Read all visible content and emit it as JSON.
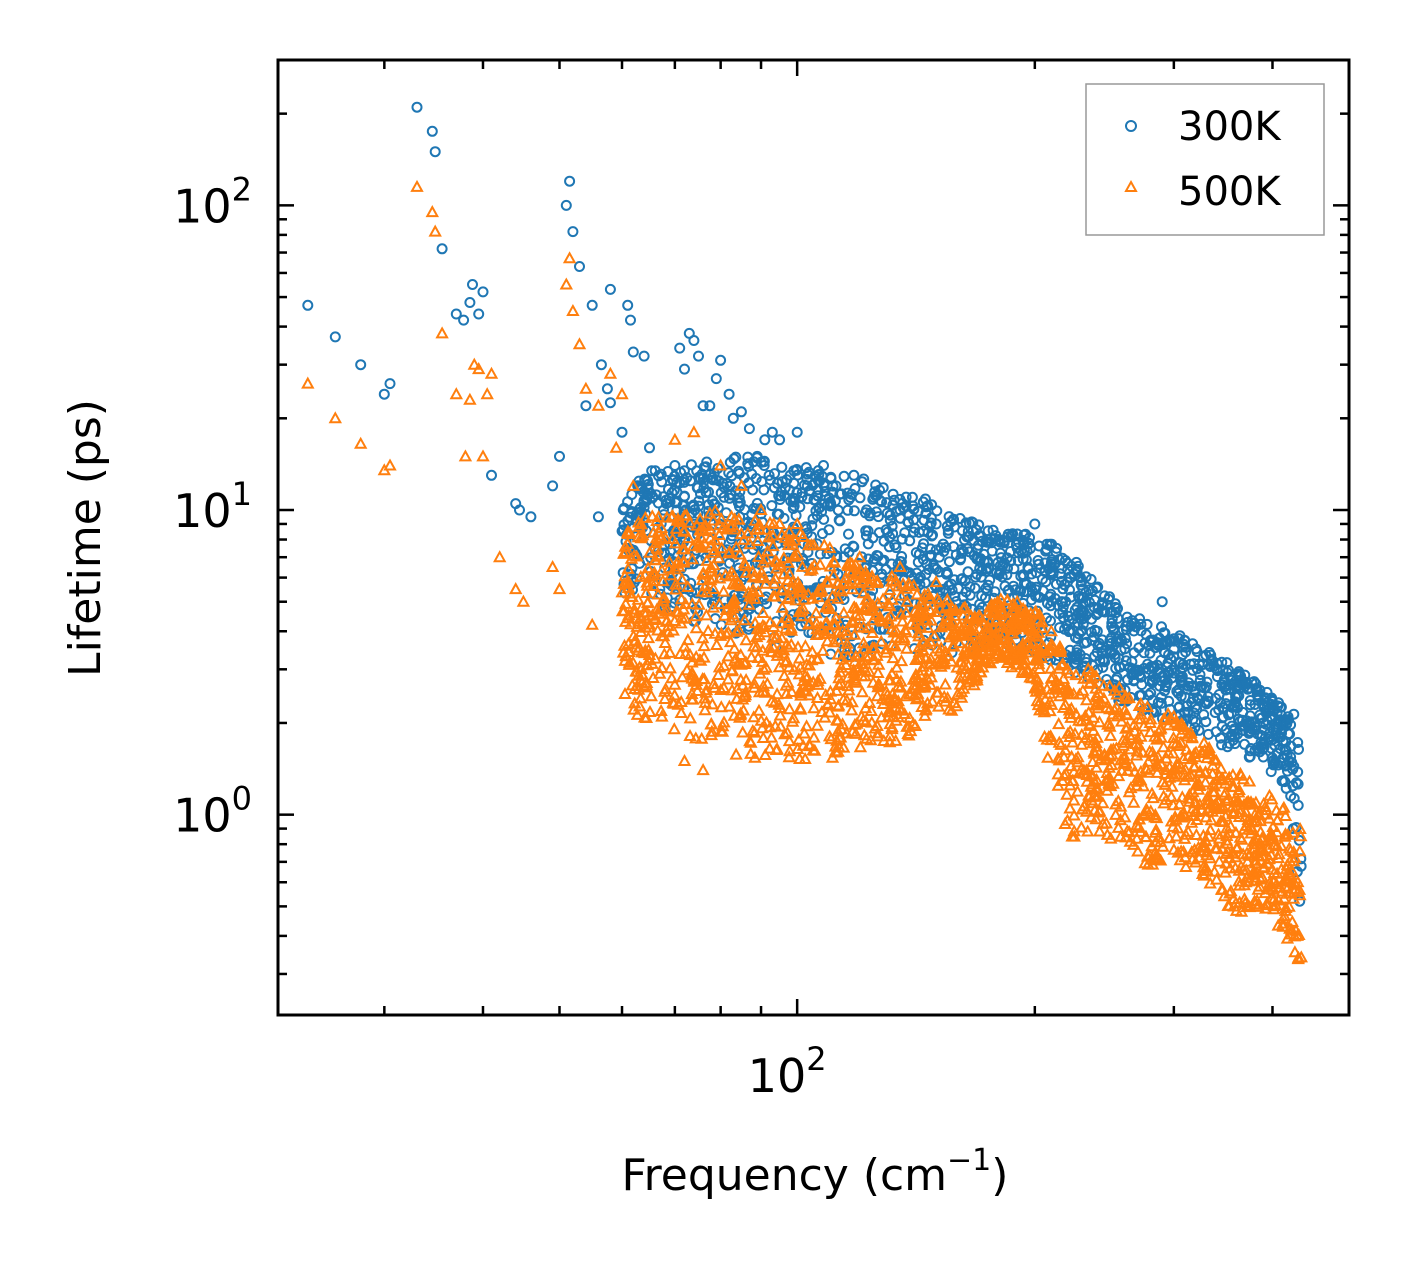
{
  "chart_data": {
    "type": "scatter",
    "title": "",
    "xlabel": "Frequency (cm",
    "xlabel_sup": "−1",
    "xlabel_close": ")",
    "ylabel": "Lifetime (ps)",
    "xscale": "log",
    "yscale": "log",
    "xlim": [
      22,
      500
    ],
    "ylim": [
      0.22,
      300
    ],
    "x_major_ticks": [
      {
        "value": 100,
        "base": "10",
        "exp": "2"
      }
    ],
    "y_major_ticks": [
      {
        "value": 1,
        "base": "10",
        "exp": "0"
      },
      {
        "value": 10,
        "base": "10",
        "exp": "1"
      },
      {
        "value": 100,
        "base": "10",
        "exp": "2"
      }
    ],
    "legend_position": "top-right",
    "series": [
      {
        "name": "300K",
        "marker": "circle",
        "color": "#1f77b4",
        "anchor_points": [
          [
            24,
            47
          ],
          [
            26,
            37
          ],
          [
            28,
            30
          ],
          [
            30,
            24
          ],
          [
            30.5,
            26
          ],
          [
            33,
            210
          ],
          [
            34.5,
            175
          ],
          [
            34.8,
            150
          ],
          [
            35.5,
            72
          ],
          [
            37,
            44
          ],
          [
            37.8,
            42
          ],
          [
            38.5,
            48
          ],
          [
            38.8,
            55
          ],
          [
            39.5,
            44
          ],
          [
            40,
            52
          ],
          [
            41,
            13
          ],
          [
            44,
            10.5
          ],
          [
            44.5,
            10
          ],
          [
            46,
            9.5
          ],
          [
            49,
            12
          ],
          [
            50,
            15
          ],
          [
            51,
            100
          ],
          [
            51.5,
            120
          ],
          [
            52,
            82
          ],
          [
            53,
            63
          ],
          [
            54,
            22
          ],
          [
            55,
            47
          ],
          [
            56,
            9.5
          ],
          [
            56.5,
            30
          ],
          [
            57.5,
            25
          ],
          [
            58,
            22.5
          ],
          [
            58,
            53
          ],
          [
            60,
            18
          ],
          [
            61,
            47
          ],
          [
            61.5,
            42
          ],
          [
            62,
            33
          ],
          [
            64,
            32
          ],
          [
            65,
            16
          ],
          [
            67,
            5.5
          ],
          [
            70,
            14
          ],
          [
            71,
            34
          ],
          [
            72,
            29
          ],
          [
            73,
            38
          ],
          [
            74,
            36
          ],
          [
            75,
            32
          ],
          [
            76,
            22
          ],
          [
            77.5,
            22
          ],
          [
            79,
            27
          ],
          [
            80,
            31
          ],
          [
            82,
            24
          ],
          [
            83,
            20
          ],
          [
            85,
            21
          ],
          [
            87,
            18.5
          ],
          [
            89,
            15
          ],
          [
            91,
            17
          ],
          [
            93,
            18
          ],
          [
            95,
            17
          ],
          [
            98,
            13
          ],
          [
            100,
            18
          ],
          [
            103,
            12
          ],
          [
            108,
            14
          ],
          [
            112,
            12
          ],
          [
            118,
            13
          ],
          [
            125,
            11
          ],
          [
            135,
            10
          ],
          [
            150,
            9
          ],
          [
            165,
            8.2
          ],
          [
            180,
            8
          ],
          [
            190,
            7.5
          ],
          [
            200,
            9
          ],
          [
            210,
            6.5
          ],
          [
            220,
            5.8
          ],
          [
            230,
            4.5
          ],
          [
            240,
            4
          ],
          [
            250,
            3.8
          ],
          [
            260,
            3.5
          ],
          [
            275,
            3.4
          ],
          [
            290,
            5
          ],
          [
            300,
            3.3
          ],
          [
            320,
            3.5
          ],
          [
            340,
            3
          ],
          [
            360,
            2.6
          ],
          [
            380,
            2.3
          ],
          [
            395,
            2.2
          ],
          [
            410,
            1.8
          ],
          [
            420,
            1.5
          ],
          [
            425,
            0.9
          ],
          [
            430,
            0.65
          ],
          [
            433,
            0.52
          ]
        ],
        "band": [
          [
            60,
            5.2,
            13
          ],
          [
            70,
            4.5,
            14
          ],
          [
            80,
            4,
            15
          ],
          [
            90,
            3.6,
            15
          ],
          [
            100,
            3.4,
            14
          ],
          [
            120,
            3.2,
            13
          ],
          [
            140,
            3.3,
            11.5
          ],
          [
            160,
            3.4,
            9.5
          ],
          [
            180,
            3.6,
            8.5
          ],
          [
            200,
            3.4,
            8.5
          ],
          [
            230,
            2.8,
            6.5
          ],
          [
            260,
            2.3,
            4.6
          ],
          [
            300,
            1.9,
            4
          ],
          [
            340,
            1.7,
            3.3
          ],
          [
            380,
            1.5,
            2.8
          ],
          [
            410,
            1.3,
            2.3
          ],
          [
            425,
            1.1,
            2.2
          ],
          [
            435,
            0.5,
            1.9
          ]
        ]
      },
      {
        "name": "500K",
        "marker": "triangle",
        "color": "#ff7f0e",
        "anchor_points": [
          [
            24,
            26
          ],
          [
            26,
            20
          ],
          [
            28,
            16.5
          ],
          [
            30,
            13.5
          ],
          [
            30.5,
            14
          ],
          [
            33,
            115
          ],
          [
            34.5,
            95
          ],
          [
            34.8,
            82
          ],
          [
            35.5,
            38
          ],
          [
            37,
            24
          ],
          [
            38,
            15
          ],
          [
            38.5,
            23
          ],
          [
            39,
            30
          ],
          [
            39.5,
            29
          ],
          [
            40,
            15
          ],
          [
            40.5,
            24
          ],
          [
            41,
            28
          ],
          [
            42,
            7
          ],
          [
            44,
            5.5
          ],
          [
            45,
            5
          ],
          [
            49,
            6.5
          ],
          [
            50,
            5.5
          ],
          [
            51,
            55
          ],
          [
            51.5,
            67
          ],
          [
            52,
            45
          ],
          [
            53,
            35
          ],
          [
            54,
            25
          ],
          [
            55,
            4.2
          ],
          [
            56,
            22
          ],
          [
            58,
            28
          ],
          [
            59,
            16
          ],
          [
            60,
            24
          ],
          [
            62,
            12
          ],
          [
            65,
            4.5
          ],
          [
            67,
            2.9
          ],
          [
            70,
            17
          ],
          [
            72,
            1.5
          ],
          [
            74,
            18
          ],
          [
            76,
            1.4
          ],
          [
            80,
            14
          ],
          [
            85,
            12
          ],
          [
            90,
            10
          ],
          [
            95,
            9
          ],
          [
            100,
            9
          ],
          [
            110,
            7.5
          ],
          [
            120,
            7
          ],
          [
            135,
            6.5
          ],
          [
            150,
            5.8
          ],
          [
            170,
            4.5
          ],
          [
            190,
            5
          ],
          [
            200,
            4.6
          ],
          [
            220,
            2.6
          ],
          [
            240,
            2.3
          ],
          [
            260,
            2.2
          ],
          [
            280,
            2
          ],
          [
            300,
            2.1
          ],
          [
            320,
            1.6
          ],
          [
            340,
            1.3
          ],
          [
            360,
            1.1
          ],
          [
            380,
            1.0
          ],
          [
            400,
            0.85
          ],
          [
            420,
            0.55
          ],
          [
            430,
            0.4
          ],
          [
            435,
            0.34
          ]
        ],
        "band": [
          [
            60,
            2.2,
            9
          ],
          [
            70,
            1.9,
            10
          ],
          [
            80,
            1.6,
            10
          ],
          [
            90,
            1.45,
            9.5
          ],
          [
            100,
            1.5,
            8.5
          ],
          [
            110,
            1.5,
            7.5
          ],
          [
            120,
            1.6,
            6.5
          ],
          [
            140,
            1.8,
            5.8
          ],
          [
            160,
            2.2,
            5
          ],
          [
            170,
            2.8,
            4.4
          ],
          [
            180,
            3.3,
            5.2
          ],
          [
            200,
            2.6,
            4.7
          ],
          [
            210,
            1.3,
            4.2
          ],
          [
            220,
            0.85,
            3.4
          ],
          [
            250,
            0.75,
            2.7
          ],
          [
            280,
            0.65,
            2.3
          ],
          [
            300,
            0.7,
            2.1
          ],
          [
            330,
            0.6,
            1.7
          ],
          [
            360,
            0.45,
            1.4
          ],
          [
            390,
            0.5,
            1.2
          ],
          [
            410,
            0.4,
            1.1
          ],
          [
            435,
            0.3,
            0.9
          ]
        ]
      }
    ]
  }
}
